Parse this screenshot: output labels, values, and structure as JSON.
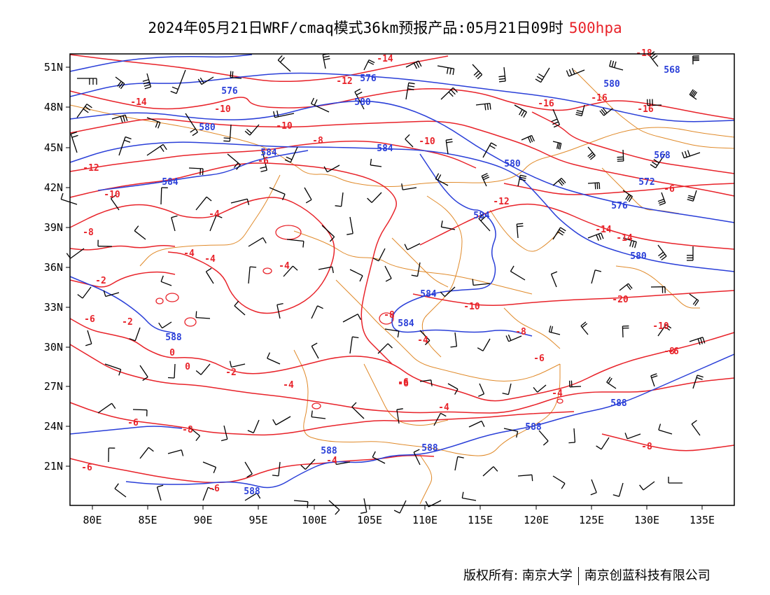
{
  "title": {
    "main": "2024年05月21日WRF/cmaq模式36km预报产品:05月21日09时",
    "level": "500hpa"
  },
  "colors": {
    "height": "#2a3fd8",
    "temperature": "#e8232a",
    "border": "#e08a2a",
    "frame": "#000000",
    "wind": "#000000"
  },
  "axes": {
    "x_ticks": [
      "80E",
      "85E",
      "90E",
      "95E",
      "100E",
      "105E",
      "110E",
      "115E",
      "120E",
      "125E",
      "130E",
      "135E"
    ],
    "y_ticks": [
      "51N",
      "48N",
      "45N",
      "42N",
      "39N",
      "36N",
      "33N",
      "30N",
      "27N",
      "24N",
      "21N"
    ]
  },
  "contours": {
    "height_labels": [
      "576",
      "576",
      "580",
      "580",
      "580",
      "580",
      "584",
      "584",
      "584",
      "584",
      "584",
      "584",
      "588",
      "588",
      "588",
      "588",
      "588",
      "588",
      "568",
      "568",
      "572",
      "576",
      "580"
    ],
    "temperature_labels": [
      "-14",
      "-14",
      "-12",
      "-12",
      "-10",
      "-10",
      "-10",
      "-10",
      "-8",
      "-8",
      "-6",
      "-4",
      "-4",
      "-4",
      "-2",
      "0",
      "-6",
      "-2",
      "0",
      "-2",
      "-4",
      "-6",
      "-8",
      "-6",
      "-8",
      "-6",
      "-6",
      "-8",
      "-6",
      "-4",
      "-4",
      "-4",
      "-6",
      "-10",
      "-12",
      "-14",
      "-16",
      "-16",
      "-16",
      "-14",
      "-18",
      "-20",
      "-10",
      "-8",
      "-8",
      "-6",
      "-4",
      "-4",
      "-6"
    ]
  },
  "footer": {
    "copyright": "版权所有: 南京大学",
    "company": "南京创蓝科技有限公司"
  }
}
